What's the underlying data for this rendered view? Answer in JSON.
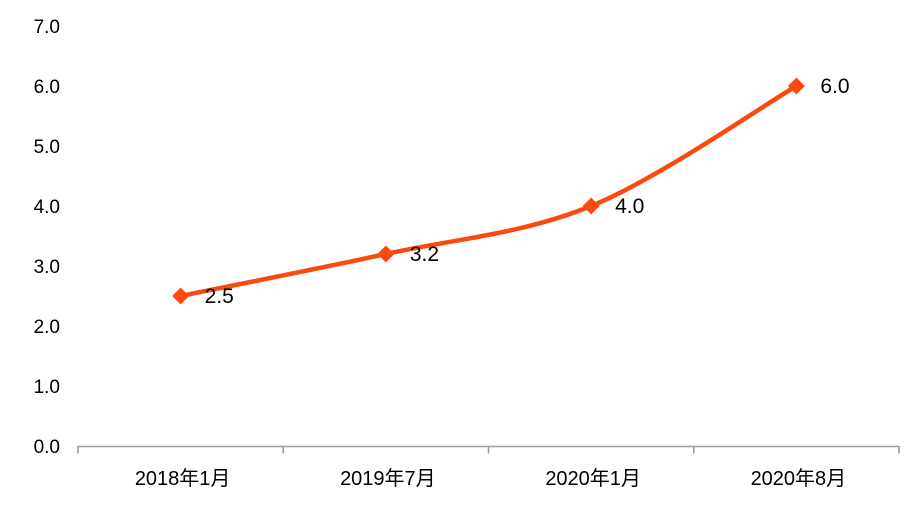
{
  "chart_data": {
    "type": "line",
    "title": "",
    "xlabel": "",
    "ylabel": "",
    "categories": [
      "2018年1月",
      "2019年7月",
      "2020年1月",
      "2020年8月"
    ],
    "values": [
      2.5,
      3.2,
      4.0,
      6.0
    ],
    "data_labels": [
      "2.5",
      "3.2",
      "4.0",
      "6.0"
    ],
    "y_tick_labels": [
      "0.0",
      "1.0",
      "2.0",
      "3.0",
      "4.0",
      "5.0",
      "6.0",
      "7.0"
    ],
    "ylim": [
      0,
      7
    ],
    "grid": false,
    "legend_position": "none",
    "smooth": true,
    "marker": "diamond",
    "colors": {
      "series": "#fb4a0e",
      "axis": "#9d9d9d",
      "text": "#000000",
      "background": "#ffffff"
    }
  }
}
